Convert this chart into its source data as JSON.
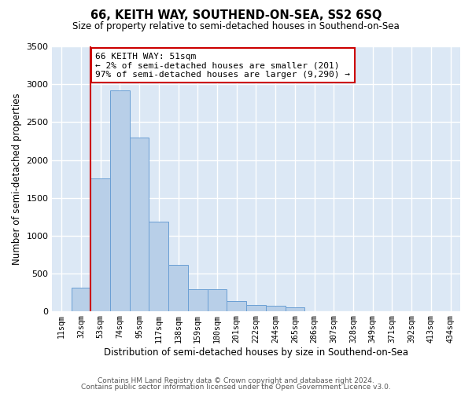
{
  "title": "66, KEITH WAY, SOUTHEND-ON-SEA, SS2 6SQ",
  "subtitle": "Size of property relative to semi-detached houses in Southend-on-Sea",
  "xlabel": "Distribution of semi-detached houses by size in Southend-on-Sea",
  "ylabel": "Number of semi-detached properties",
  "footer1": "Contains HM Land Registry data © Crown copyright and database right 2024.",
  "footer2": "Contains public sector information licensed under the Open Government Licence v3.0.",
  "annotation_title": "66 KEITH WAY: 51sqm",
  "annotation_line2": "← 2% of semi-detached houses are smaller (201)",
  "annotation_line3": "97% of semi-detached houses are larger (9,290) →",
  "bar_color": "#b8cfe8",
  "bar_edge_color": "#6a9fd4",
  "vline_color": "#cc0000",
  "annotation_box_color": "#ffffff",
  "annotation_box_edge": "#cc0000",
  "background_color": "#dce8f5",
  "categories": [
    "11sqm",
    "32sqm",
    "53sqm",
    "74sqm",
    "95sqm",
    "117sqm",
    "138sqm",
    "159sqm",
    "180sqm",
    "201sqm",
    "222sqm",
    "244sqm",
    "265sqm",
    "286sqm",
    "307sqm",
    "328sqm",
    "349sqm",
    "371sqm",
    "392sqm",
    "413sqm",
    "434sqm"
  ],
  "values": [
    5,
    310,
    1760,
    2920,
    2300,
    1190,
    610,
    290,
    290,
    140,
    90,
    75,
    50,
    0,
    0,
    0,
    0,
    0,
    0,
    0,
    0
  ],
  "vline_index": 2,
  "ylim": [
    0,
    3500
  ],
  "yticks": [
    0,
    500,
    1000,
    1500,
    2000,
    2500,
    3000,
    3500
  ]
}
